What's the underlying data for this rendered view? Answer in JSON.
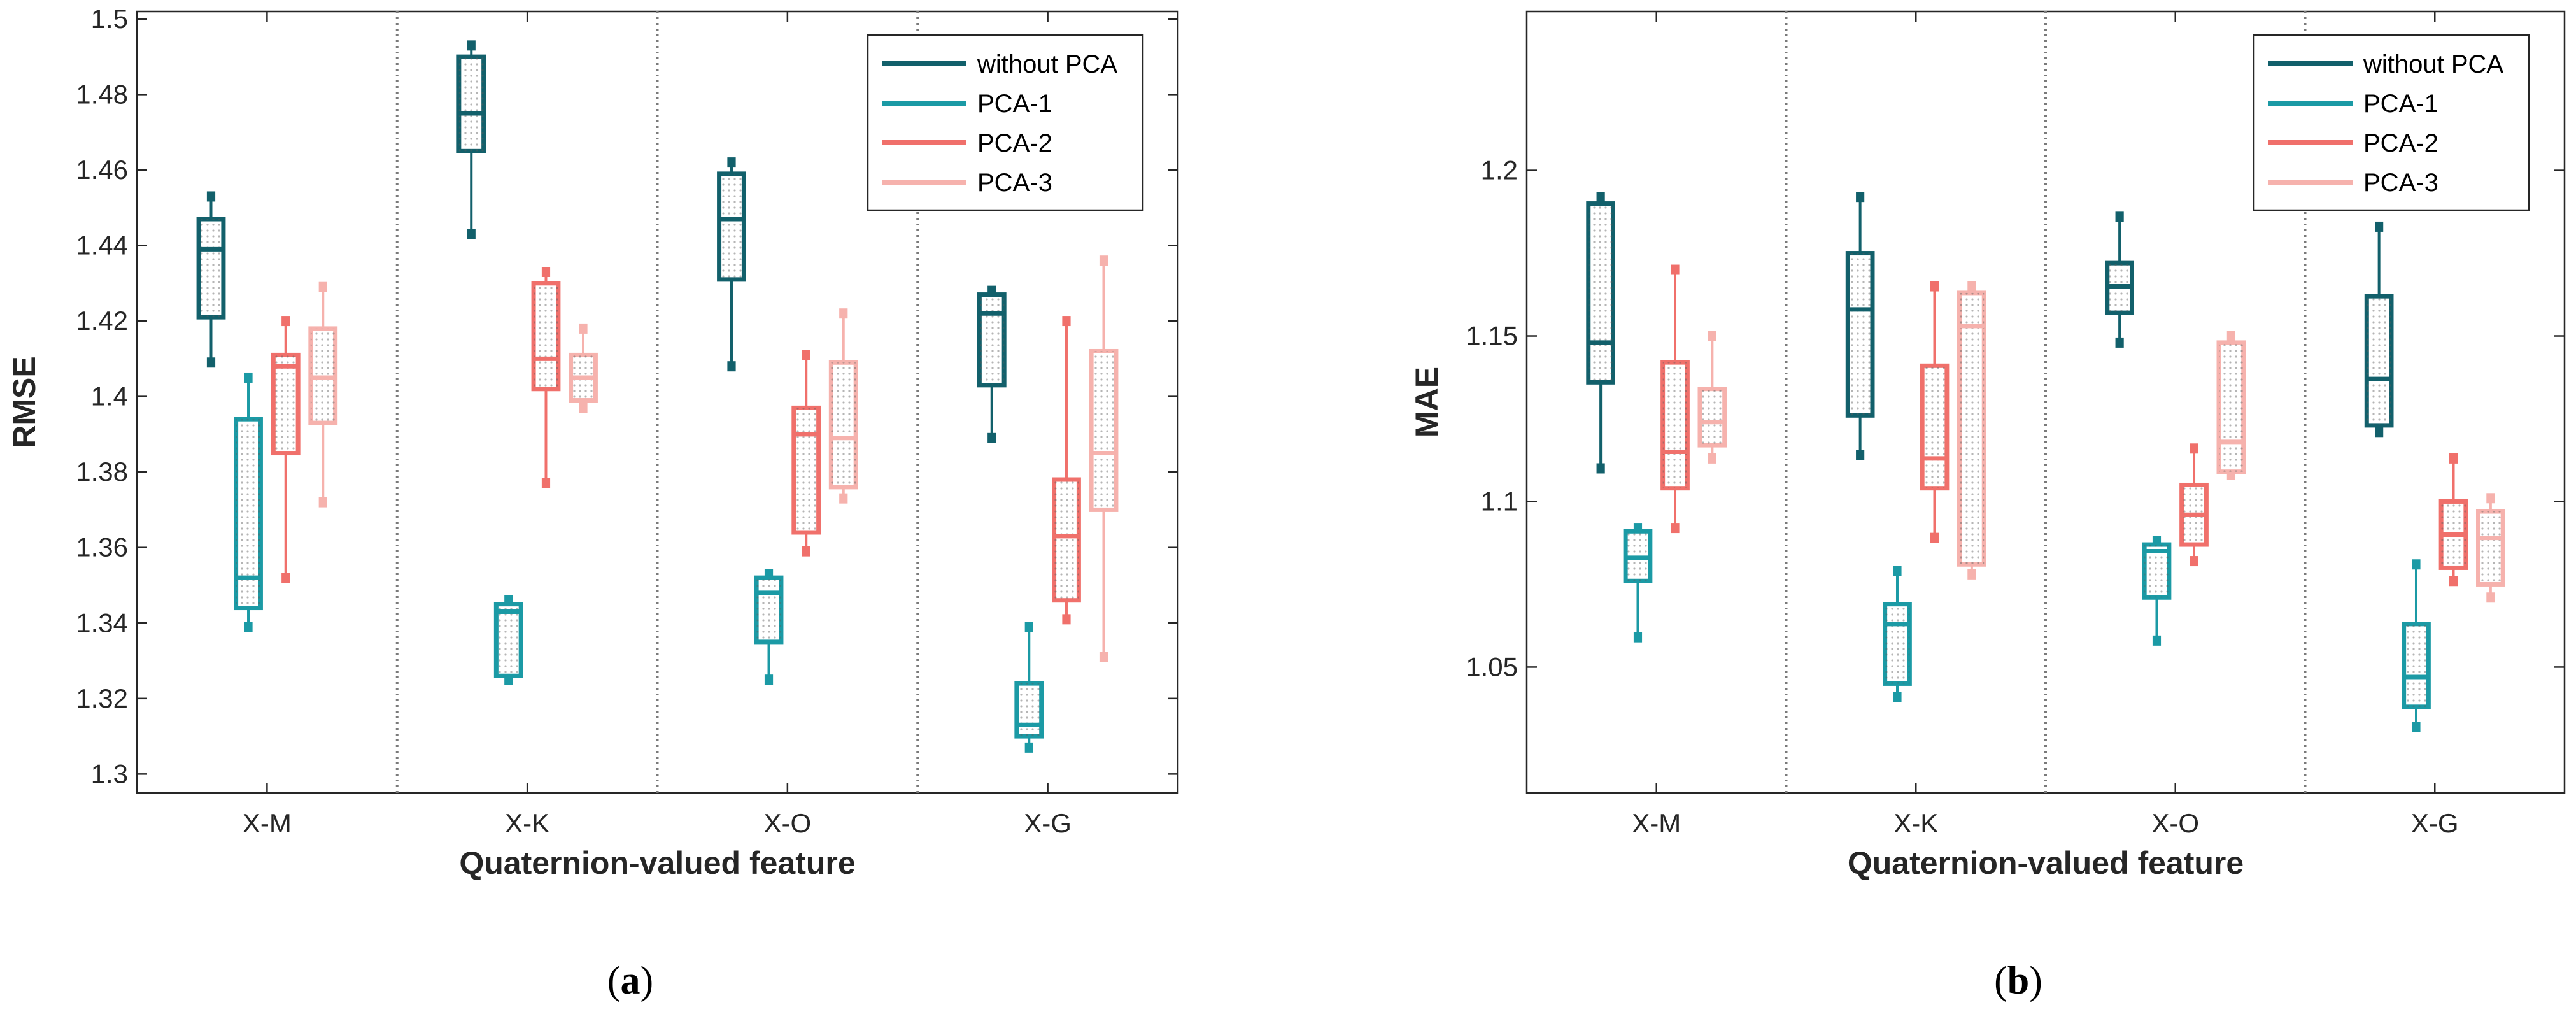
{
  "chart_data": [
    {
      "type": "box",
      "panel_label": {
        "open": "(",
        "letter": "a",
        "close": ")"
      },
      "xlabel": "Quaternion-valued feature",
      "ylabel": "RMSE",
      "categories": [
        "X-M",
        "X-K",
        "X-O",
        "X-G"
      ],
      "ylim": [
        1.295,
        1.502
      ],
      "yticks": [
        1.3,
        1.32,
        1.34,
        1.36,
        1.38,
        1.4,
        1.42,
        1.44,
        1.46,
        1.48,
        1.5
      ],
      "ytick_labels": [
        "1.3",
        "1.32",
        "1.34",
        "1.36",
        "1.38",
        "1.4",
        "1.42",
        "1.44",
        "1.46",
        "1.48",
        "1.5"
      ],
      "legend_position": "top-right",
      "series": [
        {
          "name": "without PCA",
          "color": "#12606b",
          "boxes": [
            {
              "min": 1.409,
              "q1": 1.421,
              "median": 1.439,
              "q3": 1.447,
              "max": 1.453
            },
            {
              "min": 1.443,
              "q1": 1.465,
              "median": 1.475,
              "q3": 1.49,
              "max": 1.493
            },
            {
              "min": 1.408,
              "q1": 1.431,
              "median": 1.447,
              "q3": 1.459,
              "max": 1.462
            },
            {
              "min": 1.389,
              "q1": 1.403,
              "median": 1.422,
              "q3": 1.427,
              "max": 1.428
            }
          ]
        },
        {
          "name": "PCA-1",
          "color": "#1b9aa5",
          "boxes": [
            {
              "min": 1.339,
              "q1": 1.344,
              "median": 1.352,
              "q3": 1.394,
              "max": 1.405
            },
            {
              "min": 1.325,
              "q1": 1.326,
              "median": 1.343,
              "q3": 1.345,
              "max": 1.346
            },
            {
              "min": 1.325,
              "q1": 1.335,
              "median": 1.348,
              "q3": 1.352,
              "max": 1.353
            },
            {
              "min": 1.307,
              "q1": 1.31,
              "median": 1.313,
              "q3": 1.324,
              "max": 1.339
            }
          ]
        },
        {
          "name": "PCA-2",
          "color": "#f0706b",
          "boxes": [
            {
              "min": 1.352,
              "q1": 1.385,
              "median": 1.408,
              "q3": 1.411,
              "max": 1.42
            },
            {
              "min": 1.377,
              "q1": 1.402,
              "median": 1.41,
              "q3": 1.43,
              "max": 1.433
            },
            {
              "min": 1.359,
              "q1": 1.364,
              "median": 1.39,
              "q3": 1.397,
              "max": 1.411
            },
            {
              "min": 1.341,
              "q1": 1.346,
              "median": 1.363,
              "q3": 1.378,
              "max": 1.42
            }
          ]
        },
        {
          "name": "PCA-3",
          "color": "#f6b2ad",
          "boxes": [
            {
              "min": 1.372,
              "q1": 1.393,
              "median": 1.405,
              "q3": 1.418,
              "max": 1.429
            },
            {
              "min": 1.397,
              "q1": 1.399,
              "median": 1.405,
              "q3": 1.411,
              "max": 1.418
            },
            {
              "min": 1.373,
              "q1": 1.376,
              "median": 1.389,
              "q3": 1.409,
              "max": 1.422
            },
            {
              "min": 1.331,
              "q1": 1.37,
              "median": 1.385,
              "q3": 1.412,
              "max": 1.436
            }
          ]
        }
      ]
    },
    {
      "type": "box",
      "panel_label": {
        "open": "(",
        "letter": "b",
        "close": ")"
      },
      "xlabel": "Quaternion-valued feature",
      "ylabel": "MAE",
      "categories": [
        "X-M",
        "X-K",
        "X-O",
        "X-G"
      ],
      "ylim": [
        1.012,
        1.248
      ],
      "yticks": [
        1.05,
        1.1,
        1.15,
        1.2
      ],
      "ytick_labels": [
        "1.05",
        "1.1",
        "1.15",
        "1.2"
      ],
      "legend_position": "top-right",
      "series": [
        {
          "name": "without PCA",
          "color": "#12606b",
          "boxes": [
            {
              "min": 1.11,
              "q1": 1.136,
              "median": 1.148,
              "q3": 1.19,
              "max": 1.192
            },
            {
              "min": 1.114,
              "q1": 1.126,
              "median": 1.158,
              "q3": 1.175,
              "max": 1.192
            },
            {
              "min": 1.148,
              "q1": 1.157,
              "median": 1.165,
              "q3": 1.172,
              "max": 1.186
            },
            {
              "min": 1.121,
              "q1": 1.123,
              "median": 1.137,
              "q3": 1.162,
              "max": 1.183
            }
          ]
        },
        {
          "name": "PCA-1",
          "color": "#1b9aa5",
          "boxes": [
            {
              "min": 1.059,
              "q1": 1.076,
              "median": 1.083,
              "q3": 1.091,
              "max": 1.092
            },
            {
              "min": 1.041,
              "q1": 1.045,
              "median": 1.063,
              "q3": 1.069,
              "max": 1.079
            },
            {
              "min": 1.058,
              "q1": 1.071,
              "median": 1.085,
              "q3": 1.087,
              "max": 1.088
            },
            {
              "min": 1.032,
              "q1": 1.038,
              "median": 1.047,
              "q3": 1.063,
              "max": 1.081
            }
          ]
        },
        {
          "name": "PCA-2",
          "color": "#f0706b",
          "boxes": [
            {
              "min": 1.092,
              "q1": 1.104,
              "median": 1.115,
              "q3": 1.142,
              "max": 1.17
            },
            {
              "min": 1.089,
              "q1": 1.104,
              "median": 1.113,
              "q3": 1.141,
              "max": 1.165
            },
            {
              "min": 1.082,
              "q1": 1.087,
              "median": 1.096,
              "q3": 1.105,
              "max": 1.116
            },
            {
              "min": 1.076,
              "q1": 1.08,
              "median": 1.09,
              "q3": 1.1,
              "max": 1.113
            }
          ]
        },
        {
          "name": "PCA-3",
          "color": "#f6b2ad",
          "boxes": [
            {
              "min": 1.113,
              "q1": 1.117,
              "median": 1.124,
              "q3": 1.134,
              "max": 1.15
            },
            {
              "min": 1.078,
              "q1": 1.081,
              "median": 1.153,
              "q3": 1.163,
              "max": 1.165
            },
            {
              "min": 1.108,
              "q1": 1.109,
              "median": 1.118,
              "q3": 1.148,
              "max": 1.15
            },
            {
              "min": 1.071,
              "q1": 1.075,
              "median": 1.089,
              "q3": 1.097,
              "max": 1.101
            }
          ]
        }
      ]
    }
  ]
}
